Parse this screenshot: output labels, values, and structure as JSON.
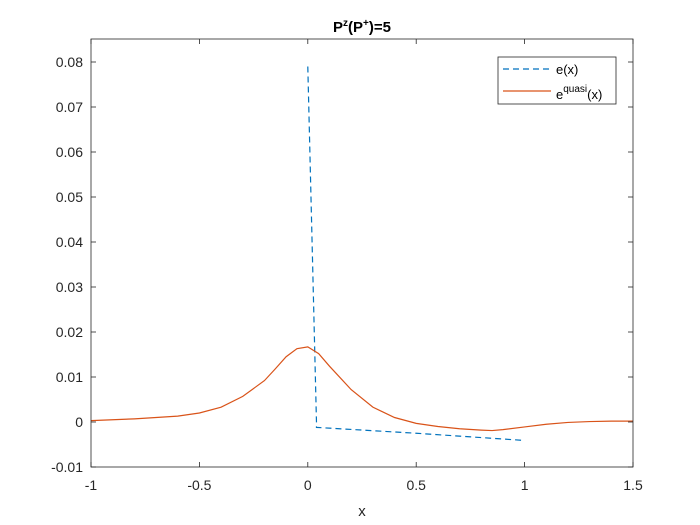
{
  "chart_data": {
    "type": "line",
    "title": {
      "base": "P",
      "sup1": "z",
      "mid": "(P",
      "sup2": "+",
      "end": ")=5"
    },
    "xlabel": "x",
    "ylabel": "",
    "xlim": [
      -1,
      1.5
    ],
    "ylim": [
      -0.01,
      0.085
    ],
    "xticks": [
      -1,
      -0.5,
      0,
      0.5,
      1,
      1.5
    ],
    "xtick_labels": [
      "-1",
      "-0.5",
      "0",
      "0.5",
      "1",
      "1.5"
    ],
    "yticks": [
      -0.01,
      0,
      0.01,
      0.02,
      0.03,
      0.04,
      0.05,
      0.06,
      0.07,
      0.08
    ],
    "ytick_labels": [
      "-0.01",
      "0",
      "0.01",
      "0.02",
      "0.03",
      "0.04",
      "0.05",
      "0.06",
      "0.07",
      "0.08"
    ],
    "grid": false,
    "legend_position": "top-right",
    "series": [
      {
        "name": "e(x)",
        "color": "#0072BD",
        "style": "dashed",
        "x": [
          0.0,
          0.04,
          0.04,
          0.5,
          1.0
        ],
        "y": [
          0.079,
          0.0,
          -0.0012,
          -0.0025,
          -0.0041
        ]
      },
      {
        "name_parts": {
          "base": "e",
          "sup": "quasi",
          "end": "(x)"
        },
        "color": "#D95319",
        "style": "solid",
        "x": [
          -1.0,
          -0.8,
          -0.6,
          -0.5,
          -0.4,
          -0.3,
          -0.2,
          -0.15,
          -0.1,
          -0.05,
          0.0,
          0.05,
          0.1,
          0.2,
          0.3,
          0.4,
          0.5,
          0.6,
          0.7,
          0.8,
          0.85,
          0.9,
          1.0,
          1.1,
          1.2,
          1.3,
          1.4,
          1.5
        ],
        "y": [
          0.0003,
          0.0007,
          0.0013,
          0.002,
          0.0033,
          0.0057,
          0.0092,
          0.0118,
          0.0145,
          0.0163,
          0.0167,
          0.0152,
          0.0124,
          0.0072,
          0.0033,
          0.001,
          -0.0003,
          -0.001,
          -0.0015,
          -0.0018,
          -0.0019,
          -0.0017,
          -0.0011,
          -0.0005,
          -0.0001,
          0.0001,
          0.0002,
          0.0002
        ]
      }
    ]
  }
}
